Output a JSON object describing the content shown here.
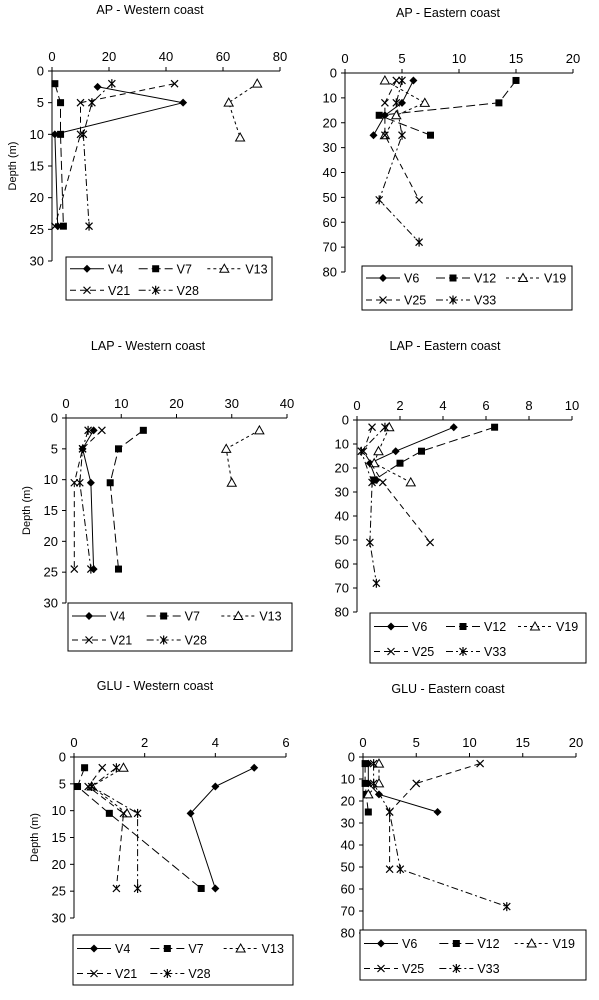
{
  "common": {
    "ylabel": "Depth (m)"
  },
  "chart_data": [
    {
      "type": "line",
      "title": "AP - Western coast",
      "ylabel": "Depth (m)",
      "xlim": [
        0,
        80
      ],
      "xticks": [
        0,
        20,
        40,
        60,
        80
      ],
      "ylim": [
        0,
        30
      ],
      "yticks": [
        0,
        5,
        10,
        15,
        20,
        25,
        30
      ],
      "legend": "bottom",
      "series": [
        {
          "name": "V4",
          "points": [
            [
              16,
              2.5
            ],
            [
              46,
              5
            ],
            [
              1,
              10
            ],
            [
              2,
              24.5
            ]
          ]
        },
        {
          "name": "V7",
          "points": [
            [
              1,
              2
            ],
            [
              3,
              5
            ],
            [
              3,
              10
            ],
            [
              4,
              24.5
            ]
          ]
        },
        {
          "name": "V13",
          "points": [
            [
              72,
              2
            ],
            [
              62,
              5
            ],
            [
              66,
              10.5
            ]
          ]
        },
        {
          "name": "V21",
          "points": [
            [
              43,
              2
            ],
            [
              10,
              5
            ],
            [
              10,
              10
            ],
            [
              1,
              24.5
            ]
          ]
        },
        {
          "name": "V28",
          "points": [
            [
              21,
              2
            ],
            [
              14,
              5
            ],
            [
              11,
              10
            ],
            [
              13,
              24.5
            ]
          ]
        }
      ]
    },
    {
      "type": "line",
      "title": "AP - Eastern coast",
      "ylabel": "",
      "xlim": [
        0,
        20
      ],
      "xticks": [
        0,
        5,
        10,
        15,
        20
      ],
      "ylim": [
        0,
        80
      ],
      "yticks": [
        0,
        10,
        20,
        30,
        40,
        50,
        60,
        70,
        80
      ],
      "legend": "bottom",
      "series": [
        {
          "name": "V6",
          "points": [
            [
              6,
              3
            ],
            [
              5,
              12
            ],
            [
              3.5,
              17
            ],
            [
              2.5,
              25
            ]
          ]
        },
        {
          "name": "V12",
          "points": [
            [
              15,
              3
            ],
            [
              13.5,
              12
            ],
            [
              3,
              17
            ],
            [
              7.5,
              25
            ]
          ]
        },
        {
          "name": "V19",
          "points": [
            [
              3.5,
              3
            ],
            [
              7,
              12
            ],
            [
              4.5,
              17
            ],
            [
              3.5,
              25
            ]
          ]
        },
        {
          "name": "V25",
          "points": [
            [
              4.5,
              3
            ],
            [
              3.5,
              12
            ],
            [
              3.5,
              25
            ],
            [
              6.5,
              51
            ]
          ]
        },
        {
          "name": "V33",
          "points": [
            [
              5,
              3
            ],
            [
              4.5,
              12
            ],
            [
              5,
              25
            ],
            [
              3,
              51
            ],
            [
              6.5,
              68
            ]
          ]
        }
      ]
    },
    {
      "type": "line",
      "title": "LAP - Western coast",
      "ylabel": "Depth (m)",
      "xlim": [
        0,
        40
      ],
      "xticks": [
        0,
        10,
        20,
        30,
        40
      ],
      "ylim": [
        0,
        30
      ],
      "yticks": [
        0,
        5,
        10,
        15,
        20,
        25,
        30
      ],
      "legend": "bottom",
      "series": [
        {
          "name": "V4",
          "points": [
            [
              5,
              2
            ],
            [
              3,
              5
            ],
            [
              4.5,
              10.5
            ],
            [
              5,
              24.5
            ]
          ]
        },
        {
          "name": "V7",
          "points": [
            [
              14,
              2
            ],
            [
              9.5,
              5
            ],
            [
              8,
              10.5
            ],
            [
              9.5,
              24.5
            ]
          ]
        },
        {
          "name": "V13",
          "points": [
            [
              35,
              2
            ],
            [
              29,
              5
            ],
            [
              30,
              10.5
            ]
          ]
        },
        {
          "name": "V21",
          "points": [
            [
              6.5,
              2
            ],
            [
              3,
              5
            ],
            [
              1.5,
              10.5
            ],
            [
              1.5,
              24.5
            ]
          ]
        },
        {
          "name": "V28",
          "points": [
            [
              4,
              2
            ],
            [
              3,
              5
            ],
            [
              2.5,
              10.5
            ],
            [
              4.5,
              24.5
            ]
          ]
        }
      ]
    },
    {
      "type": "line",
      "title": "LAP - Eastern coast",
      "ylabel": "",
      "xlim": [
        0,
        10
      ],
      "xticks": [
        0,
        2,
        4,
        6,
        8,
        10
      ],
      "ylim": [
        0,
        80
      ],
      "yticks": [
        0,
        10,
        20,
        30,
        40,
        50,
        60,
        70,
        80
      ],
      "legend": "bottom",
      "series": [
        {
          "name": "V6",
          "points": [
            [
              4.5,
              3
            ],
            [
              1.8,
              13
            ],
            [
              0.6,
              18
            ],
            [
              0.9,
              25
            ]
          ]
        },
        {
          "name": "V12",
          "points": [
            [
              6.4,
              3
            ],
            [
              3,
              13
            ],
            [
              2,
              18
            ],
            [
              0.8,
              25
            ]
          ]
        },
        {
          "name": "V19",
          "points": [
            [
              1.5,
              3
            ],
            [
              1.0,
              13
            ],
            [
              0.8,
              18
            ],
            [
              2.5,
              26
            ]
          ]
        },
        {
          "name": "V25",
          "points": [
            [
              0.7,
              3
            ],
            [
              0.3,
              13
            ],
            [
              1.2,
              26
            ],
            [
              3.4,
              51
            ]
          ]
        },
        {
          "name": "V33",
          "points": [
            [
              1.3,
              3
            ],
            [
              0.2,
              13
            ],
            [
              0.7,
              26
            ],
            [
              0.6,
              51
            ],
            [
              0.9,
              68
            ]
          ]
        }
      ]
    },
    {
      "type": "line",
      "title": "GLU - Western coast",
      "ylabel": "Depth (m)",
      "xlim": [
        0,
        6
      ],
      "xticks": [
        0,
        2,
        4,
        6
      ],
      "ylim": [
        0,
        30
      ],
      "yticks": [
        0,
        5,
        10,
        15,
        20,
        25,
        30
      ],
      "legend": "bottom",
      "series": [
        {
          "name": "V4",
          "points": [
            [
              5.1,
              2
            ],
            [
              4,
              5.5
            ],
            [
              3.3,
              10.5
            ],
            [
              4,
              24.5
            ]
          ]
        },
        {
          "name": "V7",
          "points": [
            [
              0.3,
              2
            ],
            [
              0.1,
              5.5
            ],
            [
              1,
              10.5
            ],
            [
              3.6,
              24.5
            ]
          ]
        },
        {
          "name": "V13",
          "points": [
            [
              1.4,
              2
            ],
            [
              0.5,
              5.5
            ],
            [
              1.5,
              10.5
            ]
          ]
        },
        {
          "name": "V21",
          "points": [
            [
              0.8,
              2
            ],
            [
              0.4,
              5.5
            ],
            [
              1.4,
              10.5
            ],
            [
              1.2,
              24.5
            ]
          ]
        },
        {
          "name": "V28",
          "points": [
            [
              1.2,
              2
            ],
            [
              0.5,
              5.5
            ],
            [
              1.8,
              10.5
            ],
            [
              1.8,
              24.5
            ]
          ]
        }
      ]
    },
    {
      "type": "line",
      "title": "GLU - Eastern coast",
      "ylabel": "",
      "xlim": [
        0,
        20
      ],
      "xticks": [
        0,
        5,
        10,
        15,
        20
      ],
      "ylim": [
        0,
        80
      ],
      "yticks": [
        0,
        10,
        20,
        30,
        40,
        50,
        60,
        70,
        80
      ],
      "legend": "bottom",
      "series": [
        {
          "name": "V6",
          "points": [
            [
              0.5,
              3
            ],
            [
              0.5,
              12
            ],
            [
              1.5,
              17
            ],
            [
              7,
              25
            ]
          ]
        },
        {
          "name": "V12",
          "points": [
            [
              0.2,
              3
            ],
            [
              0.2,
              12
            ],
            [
              0.3,
              17
            ],
            [
              0.5,
              25
            ]
          ]
        },
        {
          "name": "V19",
          "points": [
            [
              1.5,
              3
            ],
            [
              1.5,
              12
            ],
            [
              0.5,
              17
            ]
          ]
        },
        {
          "name": "V25",
          "points": [
            [
              11,
              3
            ],
            [
              5,
              12
            ],
            [
              2.5,
              25
            ],
            [
              2.5,
              51
            ]
          ]
        },
        {
          "name": "V33",
          "points": [
            [
              1,
              3
            ],
            [
              1,
              12
            ],
            [
              2.5,
              25
            ],
            [
              3.5,
              51
            ],
            [
              13.5,
              68
            ]
          ]
        }
      ]
    }
  ]
}
